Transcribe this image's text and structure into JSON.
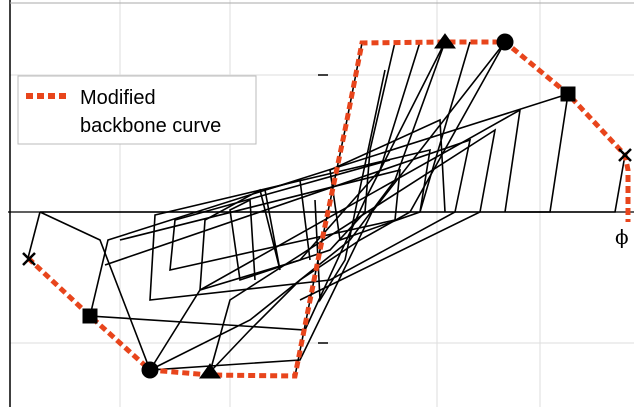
{
  "legend": {
    "lines": [
      "Modified",
      "backbone curve"
    ]
  },
  "annotation": "ϕ"
}
